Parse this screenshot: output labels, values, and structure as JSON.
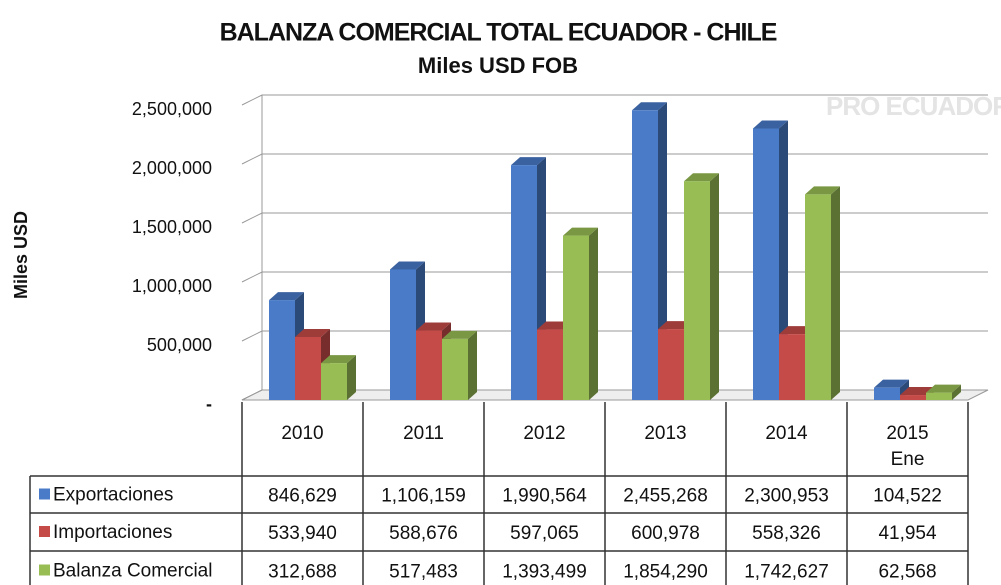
{
  "chart_data": {
    "type": "bar3d",
    "title": "BALANZA COMERCIAL TOTAL ECUADOR - CHILE",
    "subtitle": "Miles USD FOB",
    "y_label": "Miles USD",
    "watermark": "PRO ECUADOR",
    "categories": [
      "2010",
      "2011",
      "2012",
      "2013",
      "2014",
      "2015\nEne"
    ],
    "series": [
      {
        "name": "Exportaciones",
        "color": "#4a7bc8",
        "values": [
          846629,
          1106159,
          1990564,
          2455268,
          2300953,
          104522
        ],
        "value_labels": [
          "846,629",
          "1,106,159",
          "1,990,564",
          "2,455,268",
          "2,300,953",
          "104,522"
        ]
      },
      {
        "name": "Importaciones",
        "color": "#c54b48",
        "values": [
          533940,
          588676,
          597065,
          600978,
          558326,
          41954
        ],
        "value_labels": [
          "533,940",
          "588,676",
          "597,065",
          "600,978",
          "558,326",
          "41,954"
        ]
      },
      {
        "name": "Balanza Comercial",
        "color": "#98bd55",
        "values": [
          312688,
          517483,
          1393499,
          1854290,
          1742627,
          62568
        ],
        "value_labels": [
          "312,688",
          "517,483",
          "1,393,499",
          "1,854,290",
          "1,742,627",
          "62,568"
        ]
      }
    ],
    "ylim": [
      0,
      2500000
    ],
    "yticks": [
      {
        "value": 0,
        "label": "-"
      },
      {
        "value": 500000,
        "label": "500,000"
      },
      {
        "value": 1000000,
        "label": "1,000,000"
      },
      {
        "value": 1500000,
        "label": "1,500,000"
      },
      {
        "value": 2000000,
        "label": "2,000,000"
      },
      {
        "value": 2500000,
        "label": "2,500,000"
      }
    ],
    "grid": true
  }
}
